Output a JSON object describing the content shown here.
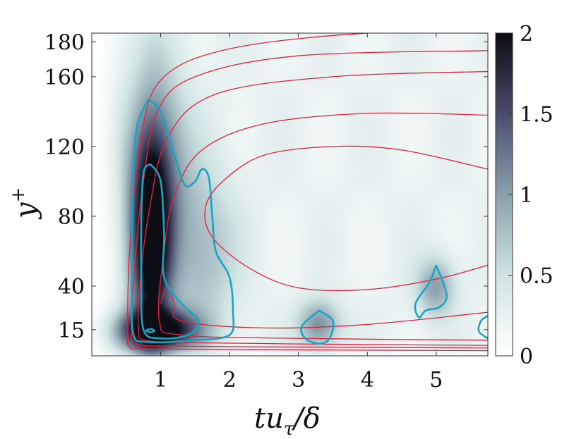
{
  "chart_data": {
    "type": "heatmap",
    "title": "",
    "xlabel": {
      "base": "tu",
      "sub": "τ",
      "suffix": "/δ"
    },
    "ylabel": {
      "base": "y",
      "sup": "+"
    },
    "xlim": [
      0.0,
      5.75
    ],
    "ylim": [
      0,
      185
    ],
    "x_ticks": [
      1,
      2,
      3,
      4,
      5
    ],
    "x_tick_labels": [
      "1",
      "2",
      "3",
      "4",
      "5"
    ],
    "y_ticks": [
      15,
      40,
      80,
      120,
      160,
      180
    ],
    "y_tick_labels": [
      "15",
      "40",
      "80",
      "120",
      "160",
      "180"
    ],
    "colorbar": {
      "range": [
        0,
        2
      ],
      "ticks": [
        0,
        0.5,
        1,
        1.5,
        2
      ],
      "tick_labels": [
        "0",
        "0.5",
        "1",
        "1.5",
        "2"
      ],
      "colormap": [
        "#ffffff",
        "#cfe3e3",
        "#8aa0ac",
        "#4a4d6e",
        "#0a0a12"
      ]
    },
    "colors": {
      "red_contours": "#e5203a",
      "cyan_contours": "#18a5c2"
    },
    "heatmap_blobs": [
      {
        "x": 0.85,
        "y": 65,
        "sx": 0.2,
        "sy": 42,
        "amp": 1.9
      },
      {
        "x": 0.95,
        "y": 15,
        "sx": 0.4,
        "sy": 8,
        "amp": 2.0
      },
      {
        "x": 0.95,
        "y": 105,
        "sx": 0.3,
        "sy": 45,
        "amp": 0.9
      },
      {
        "x": 1.6,
        "y": 60,
        "sx": 0.35,
        "sy": 35,
        "amp": 0.6
      },
      {
        "x": 3.3,
        "y": 18,
        "sx": 0.22,
        "sy": 10,
        "amp": 0.9
      },
      {
        "x": 5.0,
        "y": 40,
        "sx": 0.2,
        "sy": 12,
        "amp": 0.8
      }
    ],
    "red_contours": [
      [
        [
          5.75,
          185
        ],
        [
          4.0,
          185
        ],
        [
          2.0,
          176
        ],
        [
          1.0,
          158
        ],
        [
          0.7,
          120
        ],
        [
          0.55,
          60
        ],
        [
          0.52,
          15
        ],
        [
          0.55,
          5
        ],
        [
          0.8,
          4
        ],
        [
          2.5,
          3.5
        ],
        [
          5.75,
          3
        ]
      ],
      [
        [
          5.75,
          175
        ],
        [
          3.0,
          172
        ],
        [
          1.5,
          160
        ],
        [
          0.95,
          140
        ],
        [
          0.75,
          100
        ],
        [
          0.62,
          50
        ],
        [
          0.58,
          15
        ],
        [
          0.65,
          7
        ],
        [
          1.2,
          5.5
        ],
        [
          3.5,
          5
        ],
        [
          5.75,
          4.5
        ]
      ],
      [
        [
          5.75,
          163
        ],
        [
          3.5,
          160
        ],
        [
          1.8,
          150
        ],
        [
          1.1,
          125
        ],
        [
          0.82,
          80
        ],
        [
          0.7,
          40
        ],
        [
          0.68,
          15
        ],
        [
          0.78,
          9
        ],
        [
          1.5,
          7.5
        ],
        [
          4.0,
          6.5
        ],
        [
          5.75,
          6
        ]
      ],
      [
        [
          5.75,
          138
        ],
        [
          4.0,
          139
        ],
        [
          2.5,
          133
        ],
        [
          1.6,
          118
        ],
        [
          1.2,
          92
        ],
        [
          1.05,
          60
        ],
        [
          0.98,
          20
        ],
        [
          1.3,
          12
        ],
        [
          3.0,
          10
        ],
        [
          5.75,
          9
        ]
      ],
      [
        [
          5.75,
          107
        ],
        [
          4.5,
          118
        ],
        [
          3.5,
          120
        ],
        [
          2.5,
          115
        ],
        [
          1.9,
          100
        ],
        [
          1.65,
          85
        ],
        [
          1.75,
          68
        ],
        [
          2.3,
          50
        ],
        [
          3.0,
          39
        ],
        [
          4.0,
          38
        ],
        [
          5.0,
          44
        ],
        [
          5.75,
          52
        ]
      ],
      [
        [
          1.0,
          30
        ],
        [
          1.1,
          40
        ],
        [
          1.2,
          30
        ],
        [
          1.3,
          20
        ],
        [
          2.5,
          16
        ],
        [
          4.0,
          18
        ],
        [
          5.75,
          25
        ]
      ]
    ],
    "cyan_contours": [
      [
        [
          0.85,
          110
        ],
        [
          1.0,
          100
        ],
        [
          1.05,
          70
        ],
        [
          1.05,
          45
        ],
        [
          1.3,
          30
        ],
        [
          1.55,
          20
        ],
        [
          1.4,
          12
        ],
        [
          1.0,
          10
        ],
        [
          0.75,
          15
        ],
        [
          0.72,
          45
        ],
        [
          0.72,
          80
        ],
        [
          0.75,
          105
        ],
        [
          0.85,
          110
        ]
      ],
      [
        [
          0.82,
          147
        ],
        [
          1.0,
          140
        ],
        [
          1.2,
          115
        ],
        [
          1.35,
          98
        ],
        [
          1.5,
          100
        ],
        [
          1.6,
          107
        ],
        [
          1.7,
          102
        ],
        [
          1.75,
          80
        ],
        [
          1.8,
          60
        ],
        [
          2.0,
          45
        ],
        [
          2.05,
          25
        ],
        [
          2.0,
          12
        ],
        [
          1.5,
          9
        ],
        [
          0.8,
          8
        ],
        [
          0.6,
          13
        ],
        [
          0.58,
          45
        ],
        [
          0.6,
          95
        ],
        [
          0.65,
          130
        ],
        [
          0.82,
          147
        ]
      ],
      [
        [
          0.85,
          15.5
        ],
        [
          0.91,
          14.5
        ],
        [
          0.85,
          13.5
        ],
        [
          0.79,
          14.5
        ],
        [
          0.85,
          15.5
        ]
      ],
      [
        [
          3.3,
          26
        ],
        [
          3.5,
          20
        ],
        [
          3.45,
          10
        ],
        [
          3.3,
          7
        ],
        [
          3.1,
          10
        ],
        [
          3.05,
          17
        ],
        [
          3.3,
          26
        ]
      ],
      [
        [
          5.0,
          52
        ],
        [
          5.15,
          35
        ],
        [
          5.05,
          28
        ],
        [
          4.85,
          26
        ],
        [
          4.75,
          22
        ],
        [
          4.7,
          30
        ],
        [
          4.9,
          42
        ],
        [
          5.0,
          52
        ]
      ],
      [
        [
          5.75,
          23
        ],
        [
          5.65,
          20
        ],
        [
          5.62,
          14
        ],
        [
          5.75,
          10
        ]
      ]
    ]
  }
}
